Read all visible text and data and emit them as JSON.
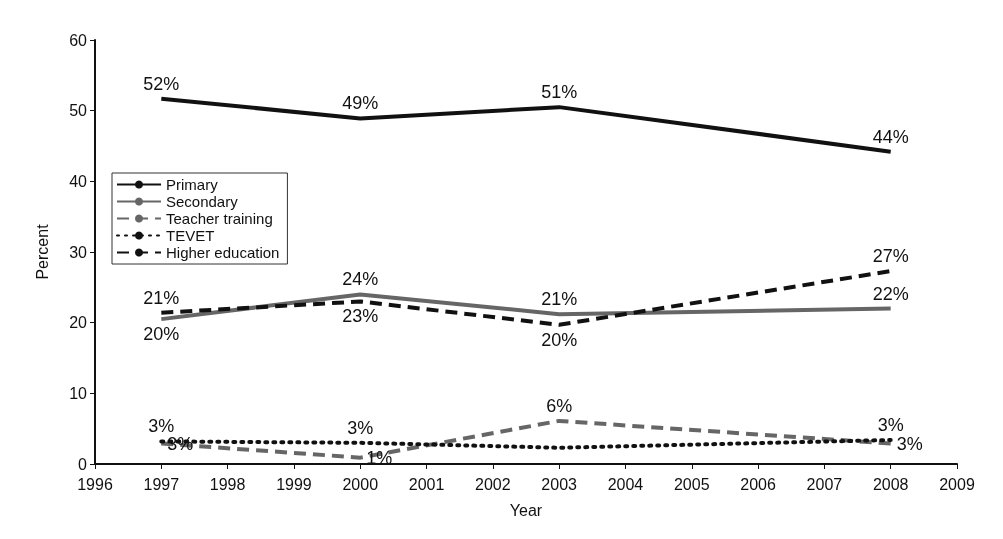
{
  "chart_data": {
    "type": "line",
    "xlabel": "Year",
    "ylabel": "Percent",
    "x": [
      1997,
      2000,
      2003,
      2008
    ],
    "series": [
      {
        "name": "Primary",
        "color": "#111111",
        "line_style": "solid",
        "values": [
          51.7,
          48.9,
          50.5,
          44.2
        ],
        "value_labels": [
          "52%",
          "49%",
          "51%",
          "44%"
        ]
      },
      {
        "name": "Secondary",
        "color": "#666666",
        "line_style": "solid",
        "values": [
          20.5,
          24,
          21.2,
          22
        ],
        "value_labels": [
          "20%",
          "24%",
          "21%",
          "22%"
        ]
      },
      {
        "name": "Teacher training",
        "color": "#666666",
        "line_style": "dashed",
        "values": [
          2.9,
          0.9,
          6.1,
          2.9
        ],
        "value_labels": [
          "3%",
          "1%",
          "6%",
          "3%"
        ]
      },
      {
        "name": "TEVET",
        "color": "#111111",
        "line_style": "dotted",
        "values": [
          3.2,
          3,
          2.3,
          3.4
        ],
        "value_labels": [
          "3%",
          "3%",
          null,
          "3%"
        ]
      },
      {
        "name": "Higher education",
        "color": "#111111",
        "line_style": "dashed",
        "values": [
          21.4,
          23,
          19.7,
          27.3
        ],
        "value_labels": [
          "21%",
          "23%",
          "20%",
          "27%"
        ]
      }
    ],
    "xlim": [
      1996,
      2009
    ],
    "xticks": [
      1996,
      1997,
      1998,
      1999,
      2000,
      2001,
      2002,
      2003,
      2004,
      2005,
      2006,
      2007,
      2008,
      2009
    ],
    "ylim": [
      0,
      60
    ],
    "yticks": [
      0,
      10,
      20,
      30,
      40,
      50,
      60
    ],
    "grid": false,
    "legend": "left",
    "marker": "none"
  }
}
